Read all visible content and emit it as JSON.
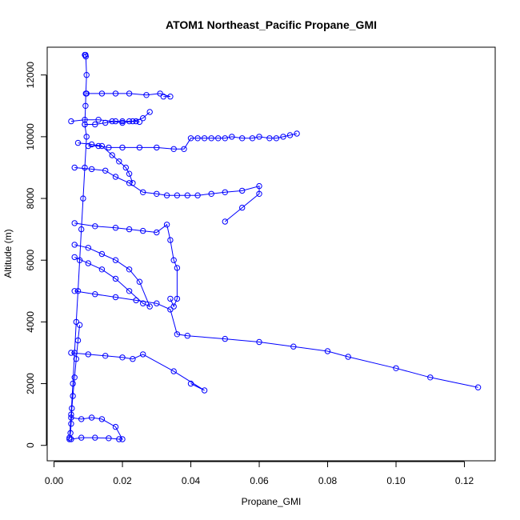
{
  "chart_data": {
    "type": "line",
    "title": "ATOM1 Northeast_Pacific Propane_GMI",
    "xlabel": "Propane_GMI",
    "ylabel": "Altitude (m)",
    "xlim": [
      -0.002,
      0.129
    ],
    "ylim": [
      -500,
      12900
    ],
    "xticks": [
      0.0,
      0.02,
      0.04,
      0.06,
      0.08,
      0.1,
      0.12
    ],
    "xtick_labels": [
      "0.00",
      "0.02",
      "0.04",
      "0.06",
      "0.08",
      "0.10",
      "0.12"
    ],
    "yticks": [
      0,
      2000,
      4000,
      6000,
      8000,
      10000,
      12000
    ],
    "ytick_labels": [
      "0",
      "2000",
      "4000",
      "6000",
      "8000",
      "10000",
      "12000"
    ],
    "grid": false,
    "legend": "none",
    "series_color": "#0000ff",
    "marker": "open-circle",
    "series": [
      {
        "name": "",
        "x": [
          0.0045,
          0.005,
          0.0055,
          0.006,
          0.0065,
          0.007,
          0.0075,
          0.008,
          0.0085,
          0.009,
          0.0095,
          0.009,
          0.0092,
          0.0093,
          0.0095,
          0.0093,
          0.0092,
          0.009
        ],
        "y": [
          200,
          1000,
          2000,
          3000,
          4000,
          5000,
          6000,
          7000,
          8000,
          9000,
          10000,
          10400,
          11000,
          11400,
          12000,
          12600,
          12650,
          12650
        ]
      },
      {
        "name": "",
        "x": [
          0.009,
          0.012,
          0.015,
          0.018,
          0.02,
          0.022,
          0.024,
          0.025
        ],
        "y": [
          10400,
          10400,
          10450,
          10500,
          10500,
          10500,
          10500,
          10480
        ]
      },
      {
        "name": "",
        "x": [
          0.01,
          0.013,
          0.016,
          0.02,
          0.025,
          0.03,
          0.035,
          0.038,
          0.04,
          0.042,
          0.044,
          0.046,
          0.048,
          0.05,
          0.052,
          0.055,
          0.058,
          0.06,
          0.063,
          0.065,
          0.067,
          0.069,
          0.071
        ],
        "y": [
          9700,
          9700,
          9650,
          9650,
          9650,
          9650,
          9600,
          9600,
          9950,
          9950,
          9950,
          9950,
          9950,
          9950,
          10000,
          9950,
          9950,
          10000,
          9950,
          9950,
          10000,
          10050,
          10100
        ]
      },
      {
        "name": "",
        "x": [
          0.0095,
          0.014,
          0.018,
          0.022,
          0.027,
          0.031,
          0.034,
          0.032
        ],
        "y": [
          11400,
          11400,
          11400,
          11400,
          11350,
          11400,
          11300,
          11300
        ]
      },
      {
        "name": "",
        "x": [
          0.006,
          0.011,
          0.015,
          0.018,
          0.022,
          0.026,
          0.03,
          0.033,
          0.036,
          0.039,
          0.042,
          0.046,
          0.05,
          0.055,
          0.06,
          0.06,
          0.055,
          0.05
        ],
        "y": [
          9000,
          8950,
          8900,
          8700,
          8500,
          8200,
          8150,
          8100,
          8100,
          8100,
          8100,
          8150,
          8200,
          8250,
          8400,
          8150,
          7700,
          7250
        ]
      },
      {
        "name": "",
        "x": [
          0.006,
          0.012,
          0.018,
          0.022,
          0.026,
          0.03,
          0.033,
          0.034,
          0.035,
          0.036,
          0.036,
          0.035,
          0.034
        ],
        "y": [
          7200,
          7100,
          7050,
          7000,
          6950,
          6900,
          7150,
          6650,
          6000,
          5750,
          4750,
          4500,
          4750
        ]
      },
      {
        "name": "",
        "x": [
          0.006,
          0.012,
          0.018,
          0.024,
          0.03,
          0.034,
          0.036,
          0.039,
          0.05,
          0.06,
          0.07,
          0.08,
          0.086,
          0.1,
          0.11,
          0.124
        ],
        "y": [
          5000,
          4900,
          4800,
          4700,
          4600,
          4400,
          3600,
          3550,
          3450,
          3350,
          3200,
          3050,
          2870,
          2500,
          2200,
          1880
        ]
      },
      {
        "name": "",
        "x": [
          0.005,
          0.01,
          0.015,
          0.02,
          0.023,
          0.026,
          0.035,
          0.044,
          0.04
        ],
        "y": [
          3000,
          2950,
          2900,
          2850,
          2800,
          2950,
          2400,
          1780,
          2000
        ]
      },
      {
        "name": "",
        "x": [
          0.005,
          0.008,
          0.012,
          0.016,
          0.019,
          0.02,
          0.018,
          0.014,
          0.011,
          0.008,
          0.005
        ],
        "y": [
          200,
          250,
          250,
          230,
          200,
          200,
          600,
          850,
          900,
          850,
          900
        ]
      },
      {
        "name": "",
        "x": [
          0.006,
          0.01,
          0.014,
          0.018,
          0.022,
          0.025,
          0.028,
          0.026,
          0.022,
          0.018,
          0.014,
          0.01,
          0.006
        ],
        "y": [
          6500,
          6400,
          6200,
          6000,
          5700,
          5300,
          4500,
          4600,
          5000,
          5400,
          5700,
          5900,
          6100
        ]
      },
      {
        "name": "",
        "x": [
          0.007,
          0.011,
          0.014,
          0.017,
          0.019,
          0.021,
          0.022,
          0.023
        ],
        "y": [
          9800,
          9750,
          9700,
          9400,
          9200,
          9000,
          8800,
          8500
        ]
      },
      {
        "name": "",
        "x": [
          0.005,
          0.009,
          0.013,
          0.017,
          0.02,
          0.023,
          0.026,
          0.028
        ],
        "y": [
          10500,
          10550,
          10550,
          10500,
          10450,
          10500,
          10600,
          10800
        ]
      },
      {
        "name": "",
        "x": [
          0.0045,
          0.0048,
          0.005,
          0.0052,
          0.0055,
          0.006,
          0.0065,
          0.007,
          0.0075
        ],
        "y": [
          250,
          400,
          700,
          1200,
          1600,
          2200,
          2800,
          3400,
          3900
        ]
      }
    ]
  }
}
